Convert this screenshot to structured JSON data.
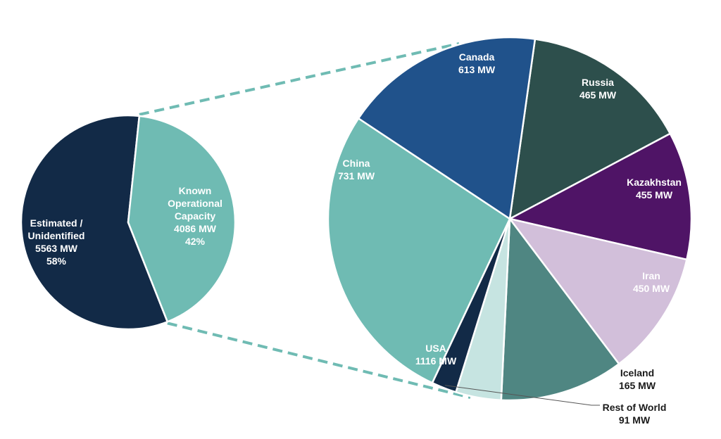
{
  "chart_data": [
    {
      "type": "pie",
      "slices": [
        {
          "label": "Estimated / Unidentified",
          "value": 5563,
          "value_text": "5563 MW",
          "percent_text": "58%",
          "color": "#122a47"
        },
        {
          "label": "Known Operational Capacity",
          "value": 4086,
          "value_text": "4086 MW",
          "percent_text": "42%",
          "color": "#6fbbb3"
        }
      ]
    },
    {
      "type": "pie",
      "slices": [
        {
          "label": "Canada",
          "value": 613,
          "value_text": "613 MW",
          "color": "#2d4f4c"
        },
        {
          "label": "Russia",
          "value": 465,
          "value_text": "465 MW",
          "color": "#4f1466"
        },
        {
          "label": "Kazakhstan",
          "value": 455,
          "value_text": "455 MW",
          "color": "#d2bfda"
        },
        {
          "label": "Iran",
          "value": 450,
          "value_text": "450 MW",
          "color": "#4f8682"
        },
        {
          "label": "Iceland",
          "value": 165,
          "value_text": "165 MW",
          "color": "#c6e4e1"
        },
        {
          "label": "Rest of World",
          "value": 91,
          "value_text": "91 MW",
          "color": "#122a47"
        },
        {
          "label": "USA",
          "value": 1116,
          "value_text": "1116 MW",
          "color": "#6fbbb3"
        },
        {
          "label": "China",
          "value": 731,
          "value_text": "731 MW",
          "color": "#20528b"
        }
      ]
    }
  ],
  "colors": {
    "connector": "#6fbbb3",
    "label_light": "#ffffff",
    "label_dark": "#1a1a1a",
    "kazakhstan_label": "#ffffff"
  }
}
